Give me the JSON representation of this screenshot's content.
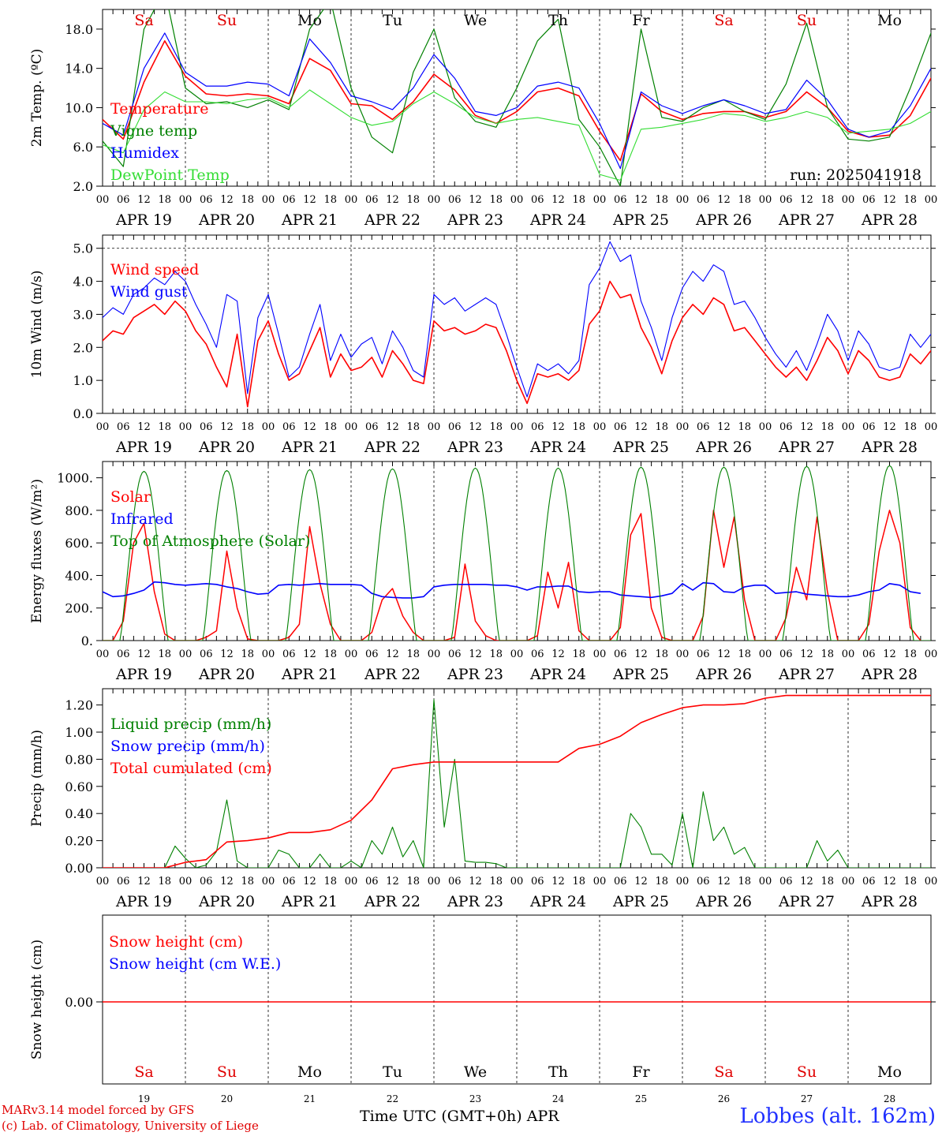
{
  "colors": {
    "red": "#ff0000",
    "green": "#008000",
    "blue": "#0000ff",
    "light_green": "#33dd33",
    "text_red": "#e00000",
    "station_blue": "#2030ff"
  },
  "day_labels": [
    "APR 19",
    "APR 20",
    "APR 21",
    "APR 22",
    "APR 23",
    "APR 24",
    "APR 25",
    "APR 26",
    "APR 27",
    "APR 28"
  ],
  "hour_ticks": [
    "00",
    "06",
    "12",
    "18"
  ],
  "weekdays": [
    {
      "label": "Sa",
      "weekend": true
    },
    {
      "label": "Su",
      "weekend": true
    },
    {
      "label": "Mo",
      "weekend": false
    },
    {
      "label": "Tu",
      "weekend": false
    },
    {
      "label": "We",
      "weekend": false
    },
    {
      "label": "Th",
      "weekend": false
    },
    {
      "label": "Fr",
      "weekend": false
    },
    {
      "label": "Sa",
      "weekend": true
    },
    {
      "label": "Su",
      "weekend": true
    },
    {
      "label": "Mo",
      "weekend": false
    }
  ],
  "footer": {
    "day_numbers": [
      "19",
      "20",
      "21",
      "22",
      "23",
      "24",
      "25",
      "26",
      "27",
      "28"
    ],
    "x_title": "Time UTC (GMT+0h) APR",
    "credit_line1": "MARv3.14 model forced by GFS",
    "credit_line2": "(c) Lab. of Climatology, University of Liege",
    "station": "Lobbes (alt. 162m)"
  },
  "chart_data": [
    {
      "id": "temp",
      "type": "line",
      "ylabel": "2m Temp. (ºC)",
      "ylim": [
        2,
        20
      ],
      "yticks": [
        2,
        6,
        10,
        14,
        18
      ],
      "ytick_labels": [
        "2.0",
        "6.0",
        "10.0",
        "14.0",
        "18.0"
      ],
      "annotation": "run: 2025041918",
      "x_unit": "hours since 2025-04-19 00 UTC",
      "series": [
        {
          "name": "Temperature",
          "color": "red",
          "width": 1.6,
          "x_step": 6,
          "values": [
            8.8,
            6.8,
            12.6,
            16.8,
            13.2,
            11.4,
            11.2,
            11.4,
            11.2,
            10.4,
            15.0,
            13.8,
            10.4,
            10.2,
            8.8,
            10.6,
            13.4,
            11.8,
            9.2,
            8.4,
            9.6,
            11.6,
            12.0,
            11.2,
            7.6,
            4.6,
            11.4,
            9.6,
            8.8,
            9.4,
            9.6,
            9.6,
            9.0,
            9.6,
            11.6,
            10.0,
            7.6,
            7.0,
            7.2,
            9.2,
            13.0,
            12.6,
            9.6,
            6.2,
            9.6,
            16.2,
            16.6,
            13.2,
            9.8,
            9.8,
            15.0,
            18.4,
            14.0,
            10.2,
            8.2,
            15.2,
            18.0,
            13.2
          ]
        },
        {
          "name": "Vigne temp",
          "color": "green",
          "width": 1.2,
          "x_step": 6,
          "values": [
            6.6,
            4.0,
            18.0,
            22.0,
            12.0,
            10.4,
            10.6,
            10.0,
            10.8,
            9.8,
            18.0,
            21.0,
            12.0,
            7.0,
            5.4,
            13.6,
            18.0,
            11.0,
            8.6,
            8.0,
            12.0,
            16.8,
            19.0,
            8.8,
            6.0,
            2.0,
            18.0,
            9.0,
            8.6,
            10.0,
            10.8,
            9.6,
            8.8,
            12.4,
            18.6,
            10.0,
            6.8,
            6.6,
            7.0,
            12.0,
            17.6,
            13.8,
            7.8,
            3.4,
            12.0,
            18.8,
            17.0,
            9.8,
            6.2,
            8.0,
            21.0,
            20.0,
            12.0,
            9.4,
            5.6,
            16.8,
            19.8,
            9.4
          ]
        },
        {
          "name": "Humidex",
          "color": "blue",
          "width": 1.2,
          "x_step": 6,
          "values": [
            8.4,
            7.2,
            14.0,
            17.6,
            13.6,
            12.2,
            12.2,
            12.6,
            12.4,
            11.2,
            17.0,
            14.6,
            11.2,
            10.6,
            9.8,
            12.0,
            15.4,
            13.0,
            9.6,
            9.2,
            10.0,
            12.2,
            12.6,
            12.0,
            8.4,
            3.8,
            11.6,
            10.2,
            9.4,
            10.2,
            10.8,
            10.2,
            9.4,
            9.8,
            12.8,
            10.8,
            7.8,
            7.0,
            7.6,
            10.2,
            14.0,
            13.8,
            10.0,
            6.8,
            10.0,
            16.8,
            17.2,
            13.6,
            10.2,
            10.4,
            15.8,
            18.6,
            14.8,
            10.8,
            8.4,
            15.4,
            18.8,
            14.0
          ]
        },
        {
          "name": "DewPoint Temp",
          "color": "light_green",
          "width": 1.1,
          "x_step": 6,
          "values": [
            6.2,
            5.4,
            9.8,
            11.6,
            10.6,
            10.6,
            10.4,
            10.8,
            11.0,
            10.0,
            11.8,
            10.4,
            9.0,
            8.2,
            8.6,
            10.4,
            11.6,
            10.4,
            9.0,
            8.4,
            8.8,
            9.0,
            8.6,
            8.2,
            3.2,
            2.6,
            7.8,
            8.0,
            8.4,
            8.8,
            9.4,
            9.2,
            8.6,
            9.0,
            9.6,
            9.0,
            7.4,
            7.6,
            7.8,
            8.4,
            9.6,
            9.0,
            8.0,
            6.8,
            8.2,
            8.2,
            8.4,
            8.6,
            7.8,
            7.2,
            8.0,
            8.4,
            6.0,
            6.4,
            7.2,
            8.4,
            9.2,
            9.6
          ]
        }
      ]
    },
    {
      "id": "wind",
      "type": "line",
      "ylabel": "10m Wind (m/s)",
      "ylim": [
        0,
        5.4
      ],
      "yticks": [
        0,
        1,
        2,
        3,
        4,
        5
      ],
      "ytick_labels": [
        "0.0",
        "1.0",
        "2.0",
        "3.0",
        "4.0",
        "5.0"
      ],
      "x_unit": "hours since 2025-04-19 00 UTC",
      "series": [
        {
          "name": "Wind speed",
          "color": "red",
          "width": 1.6,
          "x_step": 3,
          "values": [
            2.2,
            2.5,
            2.4,
            2.9,
            3.1,
            3.3,
            3.0,
            3.4,
            3.1,
            2.5,
            2.1,
            1.4,
            0.8,
            2.4,
            0.2,
            2.2,
            2.8,
            1.8,
            1.0,
            1.2,
            1.9,
            2.6,
            1.1,
            1.8,
            1.3,
            1.4,
            1.7,
            1.1,
            1.9,
            1.5,
            1.0,
            0.9,
            2.8,
            2.5,
            2.6,
            2.4,
            2.5,
            2.7,
            2.6,
            1.9,
            1.0,
            0.3,
            1.2,
            1.1,
            1.2,
            1.0,
            1.3,
            2.7,
            3.1,
            4.0,
            3.5,
            3.6,
            2.6,
            2.0,
            1.2,
            2.2,
            2.9,
            3.3,
            3.0,
            3.5,
            3.3,
            2.5,
            2.6,
            2.2,
            1.8,
            1.4,
            1.1,
            1.4,
            1.0,
            1.6,
            2.3,
            1.9,
            1.2,
            1.9,
            1.6,
            1.1,
            1.0,
            1.1,
            1.8,
            1.5,
            1.9,
            1.4,
            2.5,
            2.0,
            1.7,
            1.6,
            1.3,
            1.4,
            1.0,
            0.8,
            1.2,
            1.1,
            2.2,
            2.6,
            2.5,
            2.4,
            3.2,
            2.3,
            1.6,
            1.3,
            1.6,
            1.2,
            1.9,
            2.4,
            2.8,
            2.4,
            2.1,
            1.4,
            1.1,
            1.0
          ]
        },
        {
          "name": "Wind gust",
          "color": "blue",
          "width": 1.1,
          "x_step": 3,
          "values": [
            2.9,
            3.2,
            3.0,
            3.6,
            3.8,
            4.1,
            3.9,
            4.3,
            4.0,
            3.3,
            2.7,
            2.0,
            3.6,
            3.4,
            0.6,
            2.9,
            3.6,
            2.4,
            1.1,
            1.4,
            2.4,
            3.3,
            1.6,
            2.4,
            1.7,
            2.1,
            2.3,
            1.5,
            2.5,
            2.0,
            1.3,
            1.1,
            3.6,
            3.3,
            3.5,
            3.1,
            3.3,
            3.5,
            3.3,
            2.4,
            1.4,
            0.5,
            1.5,
            1.3,
            1.5,
            1.2,
            1.6,
            3.9,
            4.4,
            5.2,
            4.6,
            4.8,
            3.4,
            2.6,
            1.6,
            2.9,
            3.8,
            4.3,
            4.0,
            4.5,
            4.3,
            3.3,
            3.4,
            2.9,
            2.3,
            1.8,
            1.4,
            1.9,
            1.3,
            2.1,
            3.0,
            2.5,
            1.6,
            2.5,
            2.1,
            1.4,
            1.3,
            1.4,
            2.4,
            2.0,
            2.4,
            1.8,
            3.3,
            2.6,
            2.2,
            2.1,
            1.7,
            1.8,
            1.3,
            1.1,
            1.6,
            1.4,
            2.9,
            3.4,
            3.2,
            3.1,
            4.3,
            3.0,
            2.1,
            1.7,
            2.1,
            1.6,
            2.5,
            3.1,
            3.8,
            3.1,
            2.7,
            1.8,
            1.4,
            1.3
          ]
        }
      ]
    },
    {
      "id": "energy",
      "type": "line",
      "ylabel": "Energy fluxes (W/m²)",
      "ylim": [
        0,
        1100
      ],
      "yticks": [
        0,
        200,
        400,
        600,
        800,
        1000
      ],
      "ytick_labels": [
        "0.",
        "200.",
        "400.",
        "600.",
        "800.",
        "1000."
      ],
      "x_unit": "hours since 2025-04-19 00 UTC",
      "toa_peaks": [
        1040,
        1045,
        1050,
        1055,
        1060,
        1060,
        1065,
        1065,
        1070,
        1075
      ],
      "series": [
        {
          "name": "Solar",
          "color": "red",
          "width": 1.5,
          "x_step": 3,
          "values": [
            0,
            0,
            120,
            600,
            720,
            300,
            40,
            0,
            0,
            0,
            20,
            60,
            550,
            200,
            10,
            0,
            0,
            0,
            20,
            100,
            700,
            350,
            100,
            0,
            0,
            0,
            50,
            250,
            320,
            150,
            50,
            0,
            0,
            0,
            20,
            470,
            120,
            30,
            0,
            0,
            0,
            0,
            30,
            420,
            200,
            480,
            60,
            0,
            0,
            0,
            80,
            650,
            780,
            200,
            20,
            0,
            0,
            0,
            150,
            800,
            450,
            760,
            250,
            0,
            0,
            0,
            140,
            450,
            250,
            760,
            300,
            0,
            0,
            0,
            100,
            550,
            800,
            600,
            80,
            0
          ]
        },
        {
          "name": "Infrared",
          "color": "blue",
          "width": 1.6,
          "x_step": 3,
          "values": [
            300,
            270,
            275,
            290,
            310,
            360,
            355,
            345,
            340,
            345,
            350,
            345,
            330,
            320,
            300,
            285,
            290,
            340,
            345,
            340,
            345,
            350,
            345,
            345,
            345,
            340,
            290,
            270,
            265,
            262,
            262,
            270,
            330,
            340,
            345,
            345,
            345,
            345,
            340,
            340,
            330,
            310,
            330,
            330,
            335,
            335,
            300,
            295,
            300,
            300,
            280,
            275,
            270,
            265,
            275,
            290,
            350,
            310,
            355,
            350,
            300,
            295,
            330,
            340,
            340,
            290,
            295,
            300,
            285,
            280,
            275,
            270,
            270,
            280,
            300,
            310,
            350,
            340,
            300,
            290
          ]
        },
        {
          "name": "Top of Atmosphere (Solar)",
          "color": "green",
          "width": 1.1,
          "x_step": 0.5,
          "values": []
        }
      ]
    },
    {
      "id": "precip",
      "type": "line",
      "ylabel": "Precip (mm/h)",
      "ylim": [
        0,
        1.32
      ],
      "yticks": [
        0,
        0.2,
        0.4,
        0.6,
        0.8,
        1.0,
        1.2
      ],
      "ytick_labels": [
        "0.00",
        "0.20",
        "0.40",
        "0.60",
        "0.80",
        "1.00",
        "1.20"
      ],
      "x_unit": "hours since 2025-04-19 00 UTC",
      "series": [
        {
          "name": "Liquid precip (mm/h)",
          "color": "green",
          "width": 1.1,
          "x_step": 3,
          "values": [
            0,
            0,
            0,
            0,
            0,
            0,
            0,
            0.16,
            0.07,
            0,
            0.02,
            0.12,
            0.5,
            0.05,
            0,
            0,
            0,
            0.13,
            0.1,
            0,
            0,
            0.1,
            0,
            0,
            0.05,
            0,
            0.2,
            0.1,
            0.3,
            0.08,
            0.2,
            0,
            1.24,
            0.3,
            0.8,
            0.05,
            0.04,
            0.04,
            0.03,
            0,
            0,
            0,
            0,
            0,
            0,
            0,
            0,
            0,
            0,
            0,
            0,
            0.4,
            0.3,
            0.1,
            0.1,
            0.02,
            0.4,
            0,
            0.56,
            0.2,
            0.3,
            0.1,
            0.15,
            0,
            0,
            0,
            0,
            0,
            0,
            0.2,
            0.05,
            0.13,
            0,
            0,
            0,
            0,
            0,
            0,
            0,
            0,
            0,
            0,
            0,
            0,
            0,
            0,
            0,
            0,
            0,
            0
          ]
        },
        {
          "name": "Snow precip (mm/h)",
          "color": "blue",
          "width": 1.0,
          "x_step": 3,
          "values": []
        },
        {
          "name": "Total cumulated (cm)",
          "color": "red",
          "width": 1.6,
          "x_step": 6,
          "values": [
            0,
            0,
            0,
            0,
            0.04,
            0.06,
            0.19,
            0.2,
            0.22,
            0.26,
            0.26,
            0.28,
            0.35,
            0.5,
            0.73,
            0.76,
            0.78,
            0.78,
            0.78,
            0.78,
            0.78,
            0.78,
            0.78,
            0.88,
            0.91,
            0.97,
            1.07,
            1.13,
            1.18,
            1.2,
            1.2,
            1.21,
            1.25,
            1.27,
            1.27,
            1.27,
            1.27,
            1.27,
            1.27,
            1.27,
            1.27,
            1.27,
            1.27,
            1.27,
            1.27,
            1.27,
            1.27,
            1.27,
            1.27,
            1.27,
            1.27,
            1.27,
            1.27,
            1.27,
            1.27,
            1.27,
            1.27,
            1.27,
            1.27,
            1.27,
            1.27
          ]
        }
      ]
    },
    {
      "id": "snow",
      "type": "line",
      "ylabel": "Snow height (cm)",
      "yticks": [
        0
      ],
      "ytick_labels": [
        "0.00"
      ],
      "series": [
        {
          "name": "Snow height (cm)",
          "color": "red",
          "width": 1.4,
          "value": 0
        },
        {
          "name": "Snow height (cm W.E.)",
          "color": "blue",
          "width": 1.0,
          "value": 0
        }
      ]
    }
  ]
}
